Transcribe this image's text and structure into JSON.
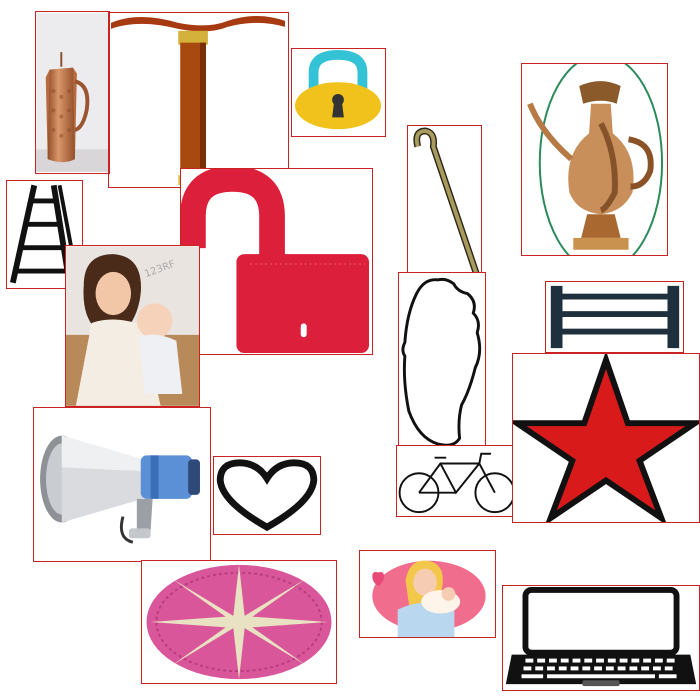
{
  "canvas": {
    "background": "#ffffff",
    "frame_color": "#cc2222"
  },
  "items": [
    {
      "id": "copper-jug",
      "icon": "copper-jug-icon"
    },
    {
      "id": "t-handle-tool",
      "icon": "t-handle-tool-icon"
    },
    {
      "id": "padlock-yellow",
      "icon": "padlock-icon"
    },
    {
      "id": "brass-pitcher",
      "icon": "brass-pitcher-icon"
    },
    {
      "id": "walking-cane",
      "icon": "walking-cane-icon"
    },
    {
      "id": "ladder",
      "icon": "ladder-icon"
    },
    {
      "id": "padlock-open-red",
      "icon": "open-padlock-icon"
    },
    {
      "id": "mother-baby-photo",
      "icon": "mother-and-baby-photo",
      "watermark": "123RF"
    },
    {
      "id": "head-outline",
      "icon": "head-outline-icon"
    },
    {
      "id": "boxing-ring",
      "icon": "boxing-ring-icon"
    },
    {
      "id": "megaphone",
      "icon": "megaphone-icon"
    },
    {
      "id": "heart",
      "icon": "heart-outline-icon"
    },
    {
      "id": "bicycle",
      "icon": "bicycle-icon"
    },
    {
      "id": "red-star",
      "icon": "star-icon"
    },
    {
      "id": "woven-mat",
      "icon": "woven-mat-icon"
    },
    {
      "id": "mother-baby-illustration",
      "icon": "mother-and-baby-illustration-icon"
    },
    {
      "id": "laptop",
      "icon": "laptop-icon"
    }
  ],
  "colors": {
    "padlock_red": "#dc1f3a",
    "padlock_yellow": "#f1c21b",
    "padlock_cyan": "#34c2d6",
    "star_red": "#d81a1a",
    "megaphone_blue": "#5b8fd6",
    "mat_pink": "#d9569b",
    "copper": "#b86b3e"
  }
}
